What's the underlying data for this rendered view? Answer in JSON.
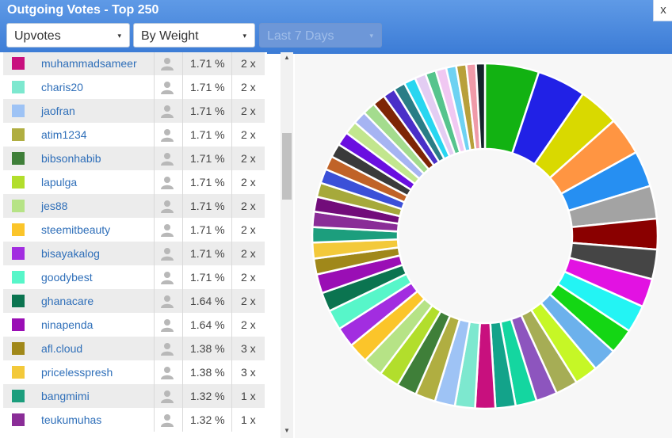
{
  "window": {
    "title": "Outgoing Votes - Top 250",
    "close_label": "x"
  },
  "filters": [
    {
      "label": "Upvotes",
      "enabled": true
    },
    {
      "label": "By Weight",
      "enabled": true
    },
    {
      "label": "Last 7 Days",
      "enabled": false
    }
  ],
  "caret": "▾",
  "scroll": {
    "up": "▲",
    "down": "▼"
  },
  "rows": [
    {
      "name": "muhammadsameer",
      "pct": "1.71 %",
      "count": "2 x",
      "color": "#c8107e"
    },
    {
      "name": "charis20",
      "pct": "1.71 %",
      "count": "2 x",
      "color": "#7de8cf"
    },
    {
      "name": "jaofran",
      "pct": "1.71 %",
      "count": "2 x",
      "color": "#9ec3f5"
    },
    {
      "name": "atim1234",
      "pct": "1.71 %",
      "count": "2 x",
      "color": "#b0ae41"
    },
    {
      "name": "bibsonhabib",
      "pct": "1.71 %",
      "count": "2 x",
      "color": "#3f7f39"
    },
    {
      "name": "lapulga",
      "pct": "1.71 %",
      "count": "2 x",
      "color": "#b2de2c"
    },
    {
      "name": "jes88",
      "pct": "1.71 %",
      "count": "2 x",
      "color": "#b6e386"
    },
    {
      "name": "steemitbeauty",
      "pct": "1.71 %",
      "count": "2 x",
      "color": "#fbc52a"
    },
    {
      "name": "bisayakalog",
      "pct": "1.71 %",
      "count": "2 x",
      "color": "#a22de0"
    },
    {
      "name": "goodybest",
      "pct": "1.71 %",
      "count": "2 x",
      "color": "#57f6c9"
    },
    {
      "name": "ghanacare",
      "pct": "1.64 %",
      "count": "2 x",
      "color": "#0b7450"
    },
    {
      "name": "ninapenda",
      "pct": "1.64 %",
      "count": "2 x",
      "color": "#9a0eb5"
    },
    {
      "name": "afl.cloud",
      "pct": "1.38 %",
      "count": "3 x",
      "color": "#a0881a"
    },
    {
      "name": "pricelesspresh",
      "pct": "1.38 %",
      "count": "3 x",
      "color": "#f3c93a"
    },
    {
      "name": "bangmimi",
      "pct": "1.32 %",
      "count": "1 x",
      "color": "#1c9e7d"
    },
    {
      "name": "teukumuhas",
      "pct": "1.32 %",
      "count": "1 x",
      "color": "#8a2d97"
    }
  ],
  "chart_data": {
    "type": "pie",
    "style": "donut",
    "legend": "none",
    "slices": [
      {
        "value": 5.1,
        "color": "#12b212"
      },
      {
        "value": 4.6,
        "color": "#2121e6"
      },
      {
        "value": 3.8,
        "color": "#d9d900"
      },
      {
        "value": 3.6,
        "color": "#ff9542"
      },
      {
        "value": 3.4,
        "color": "#268ff2"
      },
      {
        "value": 3.1,
        "color": "#a3a3a3"
      },
      {
        "value": 2.9,
        "color": "#8a0000"
      },
      {
        "value": 2.8,
        "color": "#454545"
      },
      {
        "value": 2.7,
        "color": "#e212e2"
      },
      {
        "value": 2.6,
        "color": "#23f4f4"
      },
      {
        "value": 2.4,
        "color": "#14d614"
      },
      {
        "value": 2.3,
        "color": "#6cb1ec"
      },
      {
        "value": 2.2,
        "color": "#c6f726"
      },
      {
        "value": 2.1,
        "color": "#a6ad55"
      },
      {
        "value": 2.0,
        "color": "#8d55be"
      },
      {
        "value": 2.0,
        "color": "#14d6a0"
      },
      {
        "value": 1.9,
        "color": "#13a38a"
      },
      {
        "value": 1.9,
        "color": "#c8107e"
      },
      {
        "value": 1.9,
        "color": "#7de8cf"
      },
      {
        "value": 1.9,
        "color": "#9ec3f5"
      },
      {
        "value": 1.9,
        "color": "#b0ae41"
      },
      {
        "value": 1.9,
        "color": "#3f7f39"
      },
      {
        "value": 1.9,
        "color": "#b2de2c"
      },
      {
        "value": 1.9,
        "color": "#b6e386"
      },
      {
        "value": 1.9,
        "color": "#fbc52a"
      },
      {
        "value": 1.9,
        "color": "#a22de0"
      },
      {
        "value": 1.9,
        "color": "#57f6c9"
      },
      {
        "value": 1.8,
        "color": "#0b7450"
      },
      {
        "value": 1.8,
        "color": "#9a0eb5"
      },
      {
        "value": 1.5,
        "color": "#a0881a"
      },
      {
        "value": 1.5,
        "color": "#f3c93a"
      },
      {
        "value": 1.45,
        "color": "#1c9e7d"
      },
      {
        "value": 1.45,
        "color": "#8a2d97"
      },
      {
        "value": 1.4,
        "color": "#720c7a"
      },
      {
        "value": 1.35,
        "color": "#a6a93b"
      },
      {
        "value": 1.35,
        "color": "#3b50d8"
      },
      {
        "value": 1.3,
        "color": "#c06328"
      },
      {
        "value": 1.3,
        "color": "#3a3a3a"
      },
      {
        "value": 1.3,
        "color": "#6a0ee0"
      },
      {
        "value": 1.25,
        "color": "#c2e68e"
      },
      {
        "value": 1.25,
        "color": "#a6b4f2"
      },
      {
        "value": 1.2,
        "color": "#a4dc8e"
      },
      {
        "value": 1.2,
        "color": "#7e2505"
      },
      {
        "value": 1.15,
        "color": "#4a2fc8"
      },
      {
        "value": 1.1,
        "color": "#2a7d86"
      },
      {
        "value": 1.1,
        "color": "#28d6f0"
      },
      {
        "value": 1.05,
        "color": "#e3cdf3"
      },
      {
        "value": 1.0,
        "color": "#56c48d"
      },
      {
        "value": 1.0,
        "color": "#f0c8f2"
      },
      {
        "value": 0.95,
        "color": "#6ed2f2"
      },
      {
        "value": 0.95,
        "color": "#b8a03a"
      },
      {
        "value": 0.9,
        "color": "#ef9aa8"
      },
      {
        "value": 0.85,
        "color": "#14232b"
      }
    ]
  }
}
